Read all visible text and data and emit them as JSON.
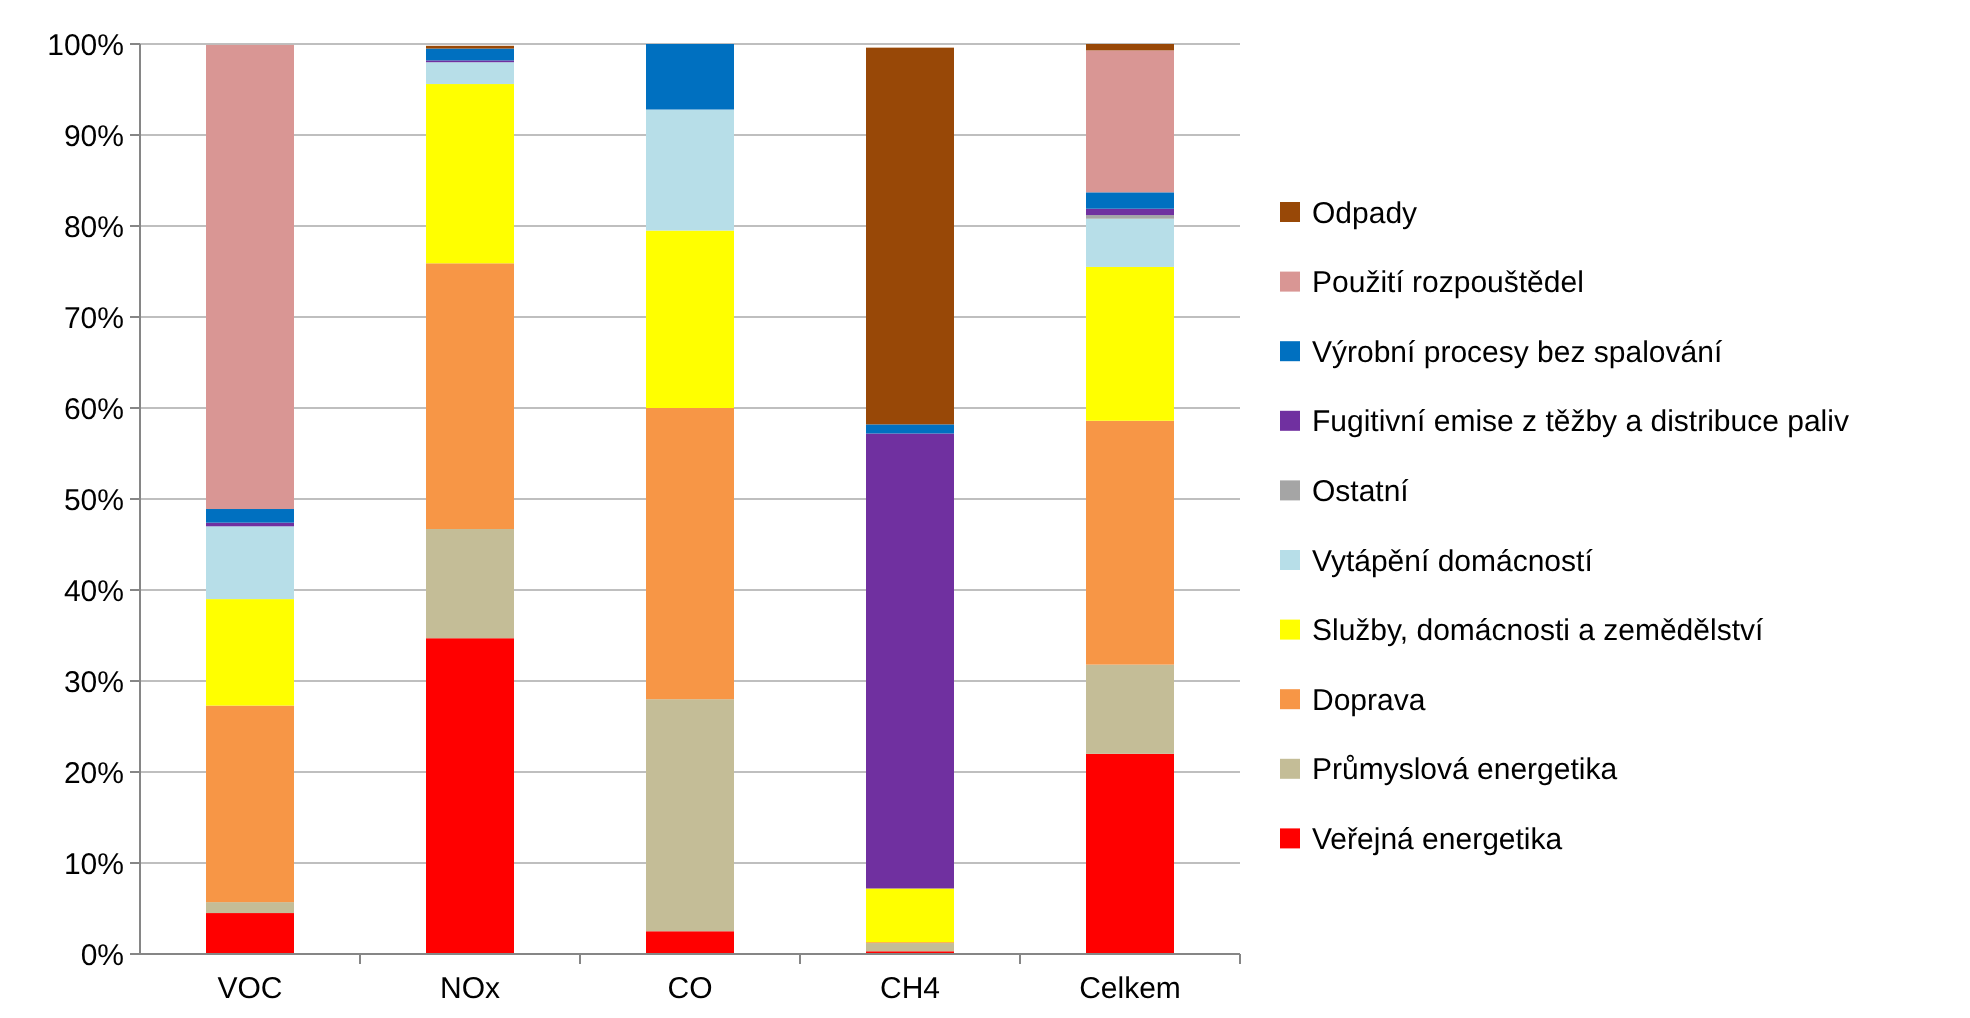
{
  "chart_data": {
    "type": "bar",
    "stacked": true,
    "categories": [
      "VOC",
      "NOx",
      "CO",
      "CH4",
      "Celkem"
    ],
    "ylim": [
      0,
      100
    ],
    "yticks": [
      {
        "value": 0,
        "label": "0%"
      },
      {
        "value": 10,
        "label": "10%"
      },
      {
        "value": 20,
        "label": "20%"
      },
      {
        "value": 30,
        "label": "30%"
      },
      {
        "value": 40,
        "label": "40%"
      },
      {
        "value": 50,
        "label": "50%"
      },
      {
        "value": 60,
        "label": "60%"
      },
      {
        "value": 70,
        "label": "70%"
      },
      {
        "value": 80,
        "label": "80%"
      },
      {
        "value": 90,
        "label": "90%"
      },
      {
        "value": 100,
        "label": "100%"
      }
    ],
    "grid": "y",
    "legend": "right",
    "series": [
      {
        "name": "Veřejná energetika",
        "color": "#ff0000",
        "values": [
          4.5,
          34.7,
          2.5,
          0.3,
          22
        ]
      },
      {
        "name": "Průmyslová energetika",
        "color": "#c4bd97",
        "values": [
          1.2,
          12.0,
          25.5,
          0.9,
          9.8
        ]
      },
      {
        "name": "Doprava",
        "color": "#f79646",
        "values": [
          21.6,
          29.2,
          32,
          0.1,
          26.8
        ]
      },
      {
        "name": "Služby, domácnosti a zemědělství",
        "color": "#ffff00",
        "values": [
          11.7,
          19.7,
          19.5,
          5.9,
          16.9
        ]
      },
      {
        "name": "Vytápění domácností",
        "color": "#b7dee8",
        "values": [
          8.0,
          2.4,
          13.3,
          null,
          5.3
        ]
      },
      {
        "name": "Ostatní",
        "color": "#a5a5a5",
        "values": [
          null,
          null,
          0,
          null,
          0.4
        ]
      },
      {
        "name": "Fugitivní emise z těžby a distribuce paliv",
        "color": "#7030a0",
        "values": [
          0.4,
          0.2,
          0,
          50,
          0.7
        ]
      },
      {
        "name": "Výrobní procesy bez spalování",
        "color": "#0070c0",
        "values": [
          1.5,
          1.3,
          7.2,
          1.0,
          1.8
        ]
      },
      {
        "name": "Použití rozpouštědel",
        "color": "#d99694",
        "values": [
          51,
          0,
          0,
          0,
          15.6
        ]
      },
      {
        "name": "Odpady",
        "color": "#984807",
        "values": [
          0,
          0.3,
          0,
          41.4,
          0.7
        ]
      }
    ]
  }
}
